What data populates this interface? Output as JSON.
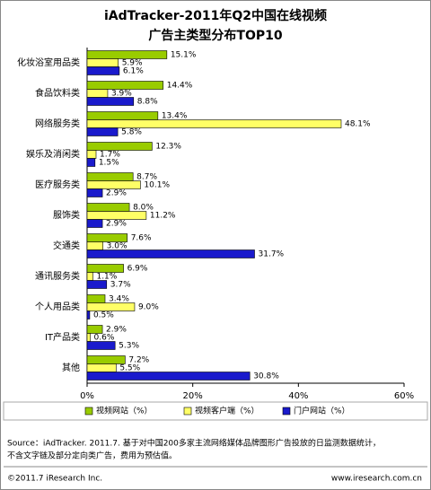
{
  "chart_data": {
    "type": "bar",
    "orientation": "horizontal",
    "title": "iAdTracker-2011年Q2中国在线视频",
    "subtitle": "广告主类型分布TOP10",
    "categories": [
      "化妆浴室用品类",
      "食品饮料类",
      "网络服务类",
      "娱乐及消闲类",
      "医疗服务类",
      "服饰类",
      "交通类",
      "通讯服务类",
      "个人用品类",
      "IT产品类",
      "其他"
    ],
    "series": [
      {
        "name": "视频网站（%）",
        "color": "#99cc00",
        "values": [
          15.1,
          14.4,
          13.4,
          12.3,
          8.7,
          8.0,
          7.6,
          6.9,
          3.4,
          2.9,
          7.2
        ],
        "value_labels": [
          "15.1%",
          "14.4%",
          "13.4%",
          "12.3%",
          "8.7%",
          "8.0%",
          "7.6%",
          "6.9%",
          "3.4%",
          "2.9%",
          "7.2%"
        ]
      },
      {
        "name": "视频客户端（%）",
        "color": "#ffff66",
        "values": [
          5.9,
          3.9,
          48.1,
          1.7,
          10.1,
          11.2,
          3.0,
          1.1,
          9.0,
          0.6,
          5.5
        ],
        "value_labels": [
          "5.9%",
          "3.9%",
          "48.1%",
          "1.7%",
          "10.1%",
          "11.2%",
          "3.0%",
          "1.1%",
          "9.0%",
          "0.6%",
          "5.5%"
        ]
      },
      {
        "name": "门户网站（%）",
        "color": "#1a1acc",
        "values": [
          6.1,
          8.8,
          5.8,
          1.5,
          2.9,
          2.9,
          31.7,
          3.7,
          0.5,
          5.3,
          30.8
        ],
        "value_labels": [
          "6.1%",
          "8.8%",
          "5.8%",
          "1.5%",
          "2.9%",
          "2.9%",
          "31.7%",
          "3.7%",
          "0.5%",
          "5.3%",
          "30.8%"
        ]
      }
    ],
    "xlim": [
      0,
      60
    ],
    "xticks": [
      {
        "value": 0,
        "label": "0%"
      },
      {
        "value": 20,
        "label": "20%"
      },
      {
        "value": 40,
        "label": "40%"
      },
      {
        "value": 60,
        "label": "60%"
      }
    ],
    "source": "Source：iAdTracker. 2011.7. 基于对中国200多家主流网络媒体品牌图形广告投放的日监测数据统计，",
    "source_note": "不含文字链及部分定向类广告，费用为预估值。",
    "copyright": "©2011.7 iResearch Inc.",
    "website": "www.iresearch.com.cn"
  }
}
